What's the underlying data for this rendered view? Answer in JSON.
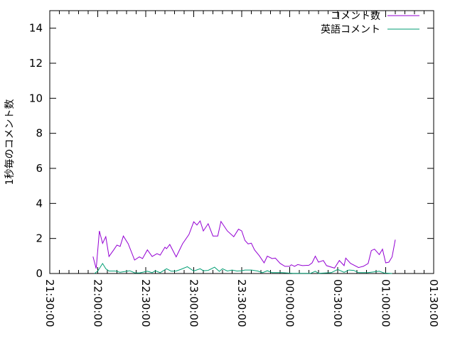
{
  "chart_data": {
    "type": "line",
    "title": "",
    "xlabel": "",
    "ylabel": "1秒毎のコメント数",
    "ylim": [
      0,
      15
    ],
    "yticks": [
      "0",
      "2",
      "4",
      "6",
      "8",
      "10",
      "12",
      "14"
    ],
    "xlim": [
      "21:30:00",
      "01:30:00"
    ],
    "xticks": [
      "21:30:00",
      "22:00:00",
      "22:30:00",
      "23:00:00",
      "23:30:00",
      "00:00:00",
      "00:30:00",
      "01:00:00",
      "01:30:00"
    ],
    "grid": false,
    "legend_position": "top-right",
    "series": [
      {
        "name": "コメント数",
        "color": "#9400d3",
        "x": [
          "21:57",
          "21:59",
          "22:01",
          "22:03",
          "22:05",
          "22:07",
          "22:10",
          "22:12",
          "22:14",
          "22:16",
          "22:19",
          "22:23",
          "22:26",
          "22:28",
          "22:31",
          "22:34",
          "22:37",
          "22:39",
          "22:42",
          "22:43",
          "22:45",
          "22:49",
          "22:53",
          "22:57",
          "23:00",
          "23:02",
          "23:04",
          "23:06",
          "23:09",
          "23:12",
          "23:15",
          "23:17",
          "23:21",
          "23:25",
          "23:28",
          "23:30",
          "23:32",
          "23:34",
          "23:36",
          "23:38",
          "23:41",
          "23:44",
          "23:46",
          "23:49",
          "23:51",
          "23:54",
          "23:57",
          "00:00",
          "00:01",
          "00:03",
          "00:05",
          "00:08",
          "00:12",
          "00:14",
          "00:16",
          "00:18",
          "00:21",
          "00:23",
          "00:28",
          "00:31",
          "00:34",
          "00:35",
          "00:38",
          "00:43",
          "00:46",
          "00:49",
          "00:51",
          "00:53",
          "00:56",
          "00:58",
          "01:00",
          "01:02",
          "01:04",
          "01:06"
        ],
        "y": [
          0.97,
          0.28,
          2.43,
          1.72,
          2.1,
          0.97,
          1.35,
          1.62,
          1.55,
          2.14,
          1.7,
          0.77,
          0.95,
          0.85,
          1.35,
          0.97,
          1.13,
          1.05,
          1.5,
          1.42,
          1.66,
          0.95,
          1.7,
          2.23,
          2.95,
          2.77,
          3.0,
          2.43,
          2.84,
          2.14,
          2.14,
          2.97,
          2.43,
          2.1,
          2.53,
          2.43,
          1.89,
          1.69,
          1.73,
          1.35,
          1.01,
          0.61,
          0.99,
          0.85,
          0.88,
          0.58,
          0.41,
          0.41,
          0.5,
          0.41,
          0.51,
          0.45,
          0.47,
          0.61,
          0.99,
          0.65,
          0.74,
          0.45,
          0.31,
          0.74,
          0.45,
          0.88,
          0.58,
          0.34,
          0.41,
          0.57,
          1.31,
          1.39,
          1.08,
          1.39,
          0.61,
          0.65,
          0.95,
          1.93
        ]
      },
      {
        "name": "英語コメント",
        "color": "#009e73",
        "x": [
          "21:58",
          "22:00",
          "22:03",
          "22:05",
          "22:07",
          "22:11",
          "22:14",
          "22:20",
          "22:23",
          "22:26",
          "22:31",
          "22:34",
          "22:36",
          "22:39",
          "22:43",
          "22:46",
          "22:49",
          "22:52",
          "22:56",
          "23:00",
          "23:04",
          "23:06",
          "23:09",
          "23:13",
          "23:16",
          "23:18",
          "23:21",
          "23:24",
          "23:27",
          "23:30",
          "23:32",
          "23:36",
          "23:40",
          "23:43",
          "23:46",
          "23:49",
          "23:55",
          "00:02",
          "00:13",
          "00:16",
          "00:18",
          "00:26",
          "00:30",
          "00:34",
          "00:37",
          "00:40",
          "00:43",
          "00:49",
          "00:56",
          "00:59",
          "01:04"
        ],
        "y": [
          0.0,
          0.14,
          0.57,
          0.27,
          0.14,
          0.14,
          0.07,
          0.16,
          0.04,
          0.03,
          0.13,
          0.05,
          0.16,
          0.05,
          0.27,
          0.13,
          0.14,
          0.24,
          0.39,
          0.14,
          0.27,
          0.16,
          0.18,
          0.36,
          0.12,
          0.27,
          0.14,
          0.2,
          0.14,
          0.16,
          0.2,
          0.2,
          0.14,
          0.05,
          0.16,
          0.05,
          0.05,
          0.01,
          0.01,
          0.13,
          0.01,
          0.05,
          0.23,
          0.07,
          0.2,
          0.18,
          0.05,
          0.05,
          0.13,
          0.03,
          0.0
        ]
      }
    ]
  }
}
